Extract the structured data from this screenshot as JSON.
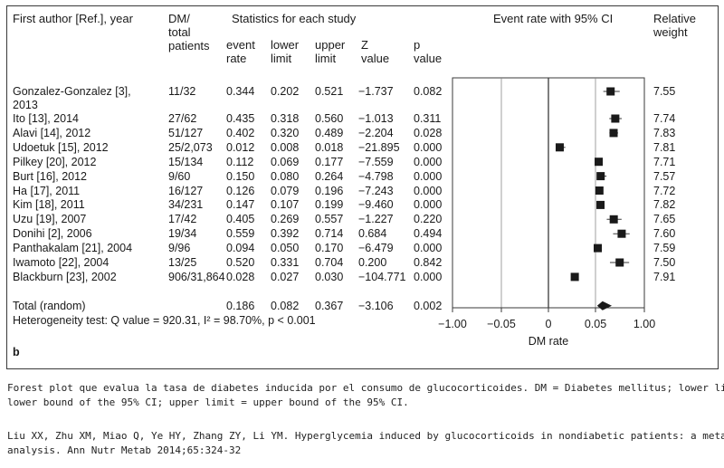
{
  "table": {
    "col_author": "First author [Ref.], year",
    "col_dm": "DM/\ntotal\npatients",
    "col_stats_group": "Statistics for each study",
    "col_event_rate": "event\nrate",
    "col_lower": "lower\nlimit",
    "col_upper": "upper\nlimit",
    "col_z": "Z\nvalue",
    "col_p": "p\nvalue",
    "col_ci_group": "Event rate with 95% CI",
    "col_weight": "Relative\nweight"
  },
  "rows": [
    {
      "study": "Gonzalez-Gonzalez [3],\n2013",
      "dm": "11/32",
      "rate": "0.344",
      "lower": "0.202",
      "upper": "0.521",
      "z": "−1.737",
      "p": "0.082",
      "weight": "7.55"
    },
    {
      "study": "Ito [13], 2014",
      "dm": "27/62",
      "rate": "0.435",
      "lower": "0.318",
      "upper": "0.560",
      "z": "−1.013",
      "p": "0.311",
      "weight": "7.74"
    },
    {
      "study": "Alavi [14], 2012",
      "dm": "51/127",
      "rate": "0.402",
      "lower": "0.320",
      "upper": "0.489",
      "z": "−2.204",
      "p": "0.028",
      "weight": "7.83"
    },
    {
      "study": "Udoetuk [15], 2012",
      "dm": "25/2,073",
      "rate": "0.012",
      "lower": "0.008",
      "upper": "0.018",
      "z": "−21.895",
      "p": "0.000",
      "weight": "7.81"
    },
    {
      "study": "Pilkey [20], 2012",
      "dm": "15/134",
      "rate": "0.112",
      "lower": "0.069",
      "upper": "0.177",
      "z": "−7.559",
      "p": "0.000",
      "weight": "7.71"
    },
    {
      "study": "Burt [16], 2012",
      "dm": "9/60",
      "rate": "0.150",
      "lower": "0.080",
      "upper": "0.264",
      "z": "−4.798",
      "p": "0.000",
      "weight": "7.57"
    },
    {
      "study": "Ha [17], 2011",
      "dm": "16/127",
      "rate": "0.126",
      "lower": "0.079",
      "upper": "0.196",
      "z": "−7.243",
      "p": "0.000",
      "weight": "7.72"
    },
    {
      "study": "Kim [18], 2011",
      "dm": "34/231",
      "rate": "0.147",
      "lower": "0.107",
      "upper": "0.199",
      "z": "−9.460",
      "p": "0.000",
      "weight": "7.82"
    },
    {
      "study": "Uzu [19], 2007",
      "dm": "17/42",
      "rate": "0.405",
      "lower": "0.269",
      "upper": "0.557",
      "z": "−1.227",
      "p": "0.220",
      "weight": "7.65"
    },
    {
      "study": "Donihi [2], 2006",
      "dm": "19/34",
      "rate": "0.559",
      "lower": "0.392",
      "upper": "0.714",
      "z": "0.684",
      "p": "0.494",
      "weight": "7.60"
    },
    {
      "study": "Panthakalam [21], 2004",
      "dm": "9/96",
      "rate": "0.094",
      "lower": "0.050",
      "upper": "0.170",
      "z": "−6.479",
      "p": "0.000",
      "weight": "7.59"
    },
    {
      "study": "Iwamoto [22], 2004",
      "dm": "13/25",
      "rate": "0.520",
      "lower": "0.331",
      "upper": "0.704",
      "z": "0.200",
      "p": "0.842",
      "weight": "7.50"
    },
    {
      "study": "Blackburn [23], 2002",
      "dm": "906/31,864",
      "rate": "0.028",
      "lower": "0.027",
      "upper": "0.030",
      "z": "−104.771",
      "p": "0.000",
      "weight": "7.91"
    }
  ],
  "total": {
    "study": "Total (random)",
    "rate": "0.186",
    "lower": "0.082",
    "upper": "0.367",
    "z": "−3.106",
    "p": "0.002"
  },
  "heterogeneity": "Heterogeneity test: Q value = 920.31, I² = 98.70%, p < 0.001",
  "panel_label": "b",
  "caption": {
    "line1": "Forest plot que evalua la tasa de diabetes inducida por el consumo de glucocorticoides. DM = Diabetes mellitus; lower limit =",
    "line2": "lower bound of the 95% CI; upper limit = upper bound of the 95% CI.",
    "line3": "Liu XX, Zhu XM, Miao Q, Ye HY, Zhang ZY, Li YM. Hyperglycemia induced by glucocorticoids in nondiabetic patients: a meta-",
    "line4": "analysis. Ann Nutr Metab 2014;65:324-32"
  },
  "chart_data": {
    "type": "scatter",
    "xlabel": "DM rate",
    "xlim": [
      -1.0,
      1.0
    ],
    "xticks": [
      "−1.00",
      "−0.05",
      "0",
      "0.05",
      "1.00"
    ],
    "reference_line": 0,
    "series": [
      {
        "values": [
          {
            "study": "Gonzalez-Gonzalez [3], 2013",
            "rate": 0.344,
            "lower": 0.202,
            "upper": 0.521
          },
          {
            "study": "Ito [13], 2014",
            "rate": 0.435,
            "lower": 0.318,
            "upper": 0.56
          },
          {
            "study": "Alavi [14], 2012",
            "rate": 0.402,
            "lower": 0.32,
            "upper": 0.489
          },
          {
            "study": "Udoetuk [15], 2012",
            "rate": 0.012,
            "lower": 0.008,
            "upper": 0.018
          },
          {
            "study": "Pilkey [20], 2012",
            "rate": 0.112,
            "lower": 0.069,
            "upper": 0.177
          },
          {
            "study": "Burt [16], 2012",
            "rate": 0.15,
            "lower": 0.08,
            "upper": 0.264
          },
          {
            "study": "Ha [17], 2011",
            "rate": 0.126,
            "lower": 0.079,
            "upper": 0.196
          },
          {
            "study": "Kim [18], 2011",
            "rate": 0.147,
            "lower": 0.107,
            "upper": 0.199
          },
          {
            "study": "Uzu [19], 2007",
            "rate": 0.405,
            "lower": 0.269,
            "upper": 0.557
          },
          {
            "study": "Donihi [2], 2006",
            "rate": 0.559,
            "lower": 0.392,
            "upper": 0.714
          },
          {
            "study": "Panthakalam [21], 2004",
            "rate": 0.094,
            "lower": 0.05,
            "upper": 0.17
          },
          {
            "study": "Iwamoto [22], 2004",
            "rate": 0.52,
            "lower": 0.331,
            "upper": 0.704
          },
          {
            "study": "Blackburn [23], 2002",
            "rate": 0.028,
            "lower": 0.027,
            "upper": 0.03
          }
        ]
      }
    ],
    "summary": {
      "label": "Total (random)",
      "rate": 0.186,
      "lower": 0.082,
      "upper": 0.367
    },
    "colors": {
      "marker": "#1a1a1a",
      "lines": "#3a3a3a",
      "gridline": "#888888"
    }
  }
}
